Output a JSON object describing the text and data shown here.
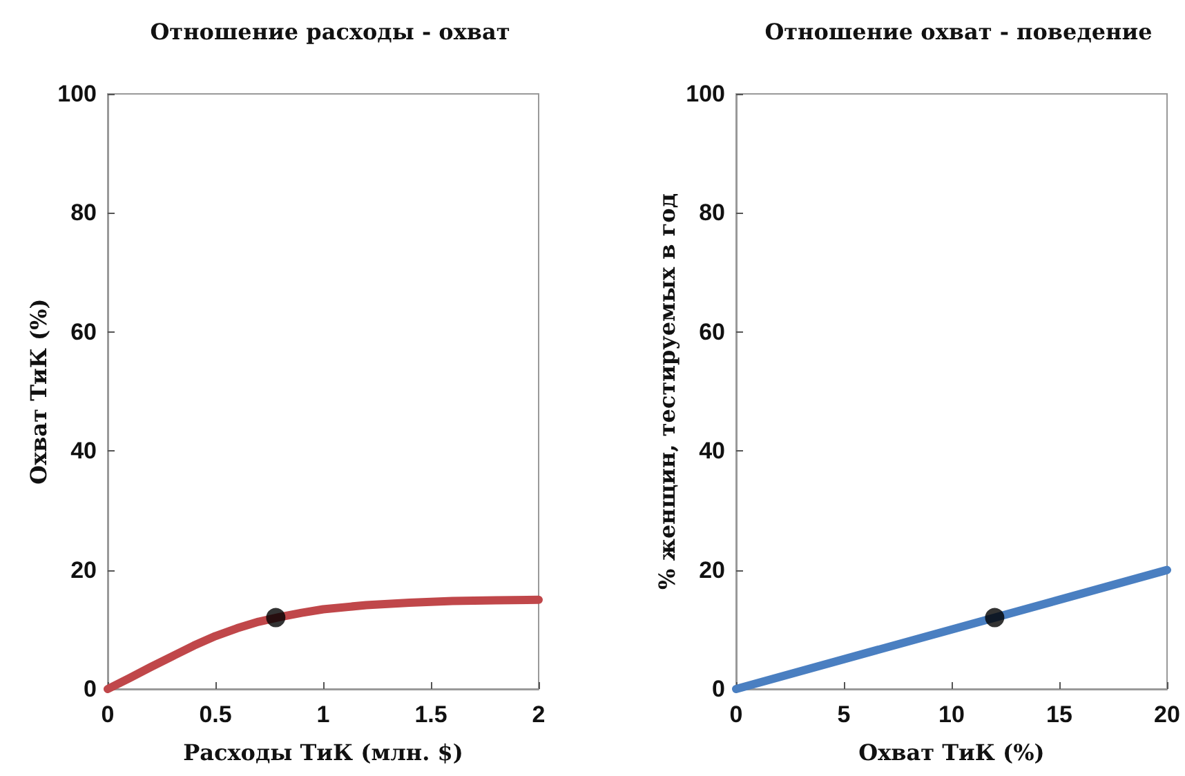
{
  "chart_data": [
    {
      "type": "line",
      "title": "Отношение расходы - охват",
      "xlabel": "Расходы ТиК (млн. $)",
      "ylabel": "Охват ТиК (%)",
      "xlim": [
        0,
        2
      ],
      "xticks": [
        0,
        0.5,
        1,
        1.5,
        2
      ],
      "ylim": [
        0,
        100
      ],
      "yticks": [
        0,
        20,
        40,
        60,
        80,
        100
      ],
      "grid": false,
      "series": [
        {
          "color": "#c0474a",
          "marker": "none",
          "x": [
            0,
            0.1,
            0.2,
            0.3,
            0.4,
            0.5,
            0.6,
            0.7,
            0.8,
            0.9,
            1,
            1.2,
            1.4,
            1.6,
            1.8,
            2
          ],
          "values": [
            0,
            1.8,
            3.7,
            5.5,
            7.3,
            8.9,
            10.2,
            11.3,
            12.1,
            12.8,
            13.4,
            14.1,
            14.5,
            14.8,
            14.9,
            15
          ]
        },
        {
          "type": "scatter",
          "color": "#000000",
          "marker": "circle",
          "x": [
            0.78
          ],
          "values": [
            12
          ]
        }
      ]
    },
    {
      "type": "line",
      "title": "Отношение охват - поведение",
      "xlabel": "Охват ТиК (%)",
      "ylabel": "% женщин, тестируемых в год",
      "xlim": [
        0,
        20
      ],
      "xticks": [
        0,
        5,
        10,
        15,
        20
      ],
      "ylim": [
        0,
        100
      ],
      "yticks": [
        0,
        20,
        40,
        60,
        80,
        100
      ],
      "grid": false,
      "series": [
        {
          "color": "#4a7fc1",
          "marker": "none",
          "x": [
            0,
            20
          ],
          "values": [
            0,
            20
          ]
        },
        {
          "type": "scatter",
          "color": "#000000",
          "marker": "circle",
          "x": [
            12
          ],
          "values": [
            12
          ]
        }
      ]
    }
  ]
}
